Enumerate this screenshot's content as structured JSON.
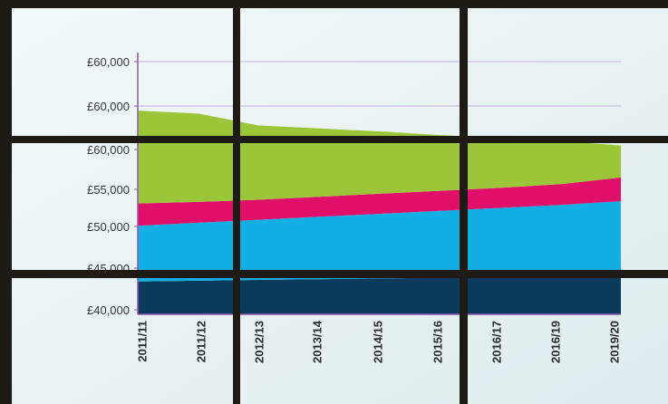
{
  "chart_data": {
    "type": "area",
    "title": "",
    "xlabel": "",
    "ylabel": "",
    "categories": [
      "2011/11",
      "2011/12",
      "2012/13",
      "2013/14",
      "2014/15",
      "2015/16",
      "2016/17",
      "2016/19",
      "2019/20"
    ],
    "y_tick_labels": [
      "£60,000",
      "£60,000",
      "£60,000",
      "£55,000",
      "£50,000",
      "£45,000",
      "£40,000"
    ],
    "legend": "none",
    "grid": "horizontal",
    "series": [
      {
        "color": "#0a3a5c",
        "values": [
          42600,
          42700,
          42800,
          42900,
          43000,
          43100,
          43200,
          43300,
          43400
        ]
      },
      {
        "color": "#12aee4",
        "values": [
          50100,
          50500,
          50900,
          51300,
          51700,
          52100,
          52500,
          52900,
          53400
        ]
      },
      {
        "color": "#e0106a",
        "values": [
          53100,
          53300,
          53600,
          54000,
          54400,
          54800,
          55200,
          55700,
          56600
        ]
      },
      {
        "color": "#9bc63a",
        "values": [
          65600,
          65200,
          63600,
          63200,
          62800,
          62300,
          61900,
          61500,
          60900
        ]
      }
    ]
  },
  "colors": {
    "screen": "#eaf3f4",
    "bezel": "#1e1b17",
    "axis": "#8a5ab0",
    "grid": "#c7b3dc"
  }
}
